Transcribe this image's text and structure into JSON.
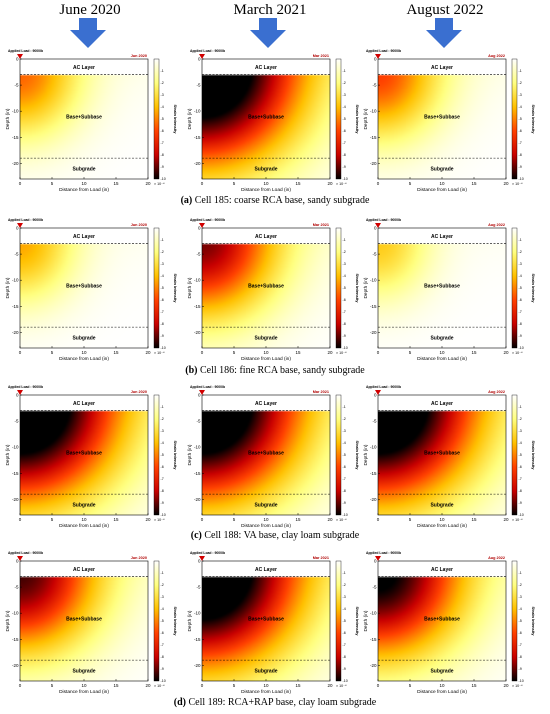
{
  "column_titles": [
    "June 2020",
    "March 2021",
    "August 2022"
  ],
  "chart_data": {
    "type": "heatmap",
    "ylabel": "Depth (in)",
    "xlabel": "Distance from Load (in)",
    "colorbar_label": "Strain Intensity",
    "colorbar_exponent": "× 10⁻⁴",
    "applied_load_label": "Applied Load : 9000lb",
    "layer_labels": [
      "AC Layer",
      "Base+Subbase",
      "Subgrade"
    ],
    "x_ticks": [
      0,
      5,
      10,
      15,
      20
    ],
    "y_ticks": [
      0,
      -5,
      -10,
      -15,
      -20
    ],
    "xlim": [
      0,
      20
    ],
    "ylim": [
      -23,
      0
    ],
    "layer_boundaries_depth_in": [
      -3,
      -19
    ],
    "colorbar_ticks": [
      -1,
      -2,
      -3,
      -4,
      -5,
      -6,
      -7,
      -8,
      -9,
      -10
    ],
    "colorscale": [
      "#000000",
      "#c80000",
      "#ff4000",
      "#ffc000",
      "#ffff80",
      "#ffffff"
    ],
    "date_tags": [
      "Jun 2020",
      "Mar 2021",
      "Aug 2022"
    ],
    "panels": [
      {
        "cell": "Cell 185",
        "date_tag": "Jun 2020",
        "peak_strain": 4.0
      },
      {
        "cell": "Cell 185",
        "date_tag": "Mar 2021",
        "peak_strain": 10.0
      },
      {
        "cell": "Cell 185",
        "date_tag": "Aug 2022",
        "peak_strain": 4.5
      },
      {
        "cell": "Cell 186",
        "date_tag": "Jun 2020",
        "peak_strain": 3.2
      },
      {
        "cell": "Cell 186",
        "date_tag": "Mar 2021",
        "peak_strain": 6.5
      },
      {
        "cell": "Cell 186",
        "date_tag": "Aug 2022",
        "peak_strain": 2.6
      },
      {
        "cell": "Cell 188",
        "date_tag": "Jun 2020",
        "peak_strain": 10.0
      },
      {
        "cell": "Cell 188",
        "date_tag": "Mar 2021",
        "peak_strain": 10.0
      },
      {
        "cell": "Cell 188",
        "date_tag": "Aug 2022",
        "peak_strain": 10.0
      },
      {
        "cell": "Cell 189",
        "date_tag": "Jun 2020",
        "peak_strain": 7.0
      },
      {
        "cell": "Cell 189",
        "date_tag": "Mar 2021",
        "peak_strain": 10.0
      },
      {
        "cell": "Cell 189",
        "date_tag": "Aug 2022",
        "peak_strain": 8.0
      }
    ]
  },
  "captions": [
    {
      "label": "(a)",
      "text": " Cell 185: coarse RCA base, sandy subgrade"
    },
    {
      "label": "(b)",
      "text": " Cell 186: fine RCA base, sandy subgrade"
    },
    {
      "label": "(c)",
      "text": " Cell 188: VA base, clay loam subgrade"
    },
    {
      "label": "(d)",
      "text": " Cell 189: RCA+RAP base, clay loam subgrade"
    }
  ],
  "colors": {
    "arrow": "#3a6fd0",
    "load_marker": "#d00000",
    "date_tag": "#b00000"
  }
}
